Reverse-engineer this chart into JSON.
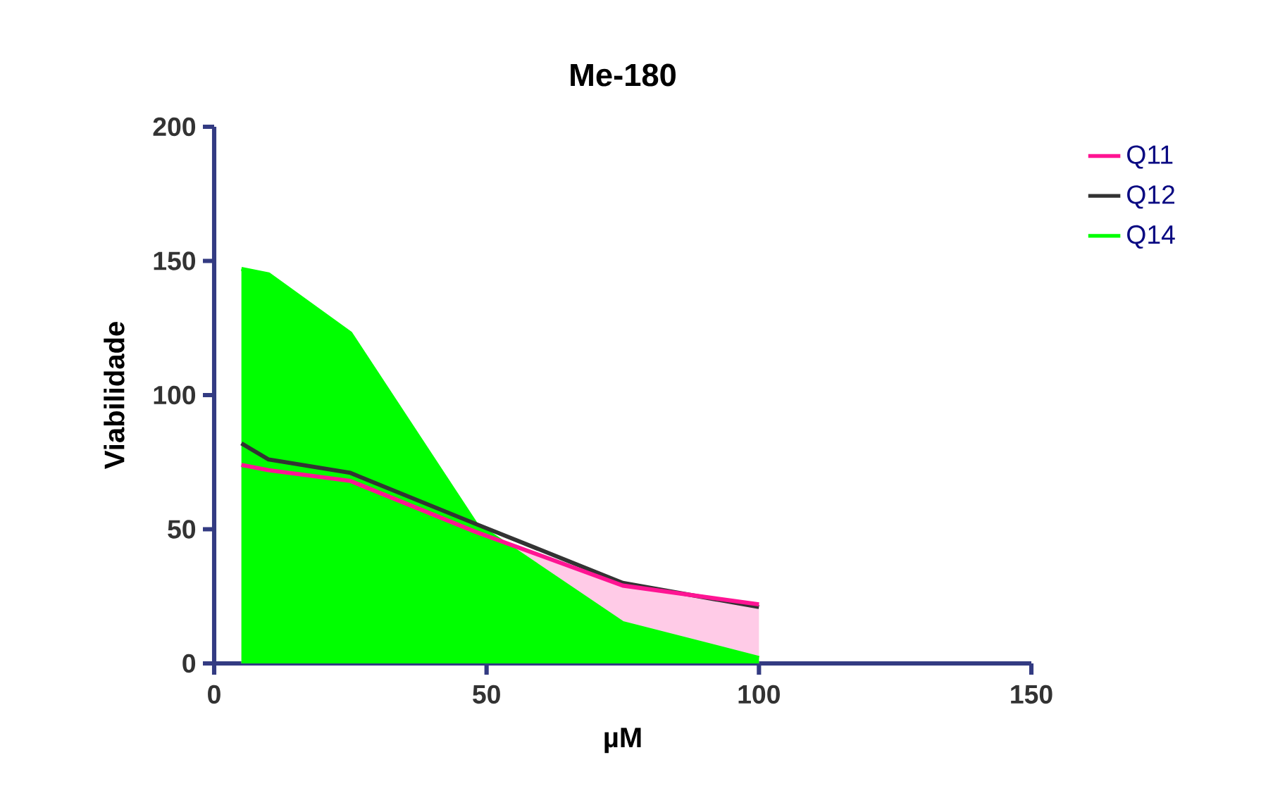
{
  "chart_data": {
    "type": "area",
    "title": "Me-180",
    "xlabel": "µM",
    "ylabel": "Viabilidade",
    "xlim": [
      0,
      150
    ],
    "ylim": [
      0,
      200
    ],
    "xticks": [
      0,
      50,
      100,
      150
    ],
    "yticks": [
      0,
      50,
      100,
      150,
      200
    ],
    "legend": "right",
    "grid": false,
    "series": [
      {
        "name": "Q11",
        "color": "#ff1493",
        "x": [
          5,
          10,
          25,
          48,
          75,
          100
        ],
        "values": [
          74,
          72,
          68,
          49,
          29,
          22
        ]
      },
      {
        "name": "Q12",
        "type": "line",
        "color": "#333333",
        "x": [
          5,
          10,
          25,
          48,
          75,
          100
        ],
        "values": [
          82,
          76,
          71,
          52,
          30,
          21
        ]
      },
      {
        "name": "Q14",
        "color": "#00ff00",
        "x": [
          5,
          10,
          25,
          48,
          75,
          100
        ],
        "values": [
          147,
          145,
          123,
          52,
          15,
          2
        ]
      }
    ]
  }
}
